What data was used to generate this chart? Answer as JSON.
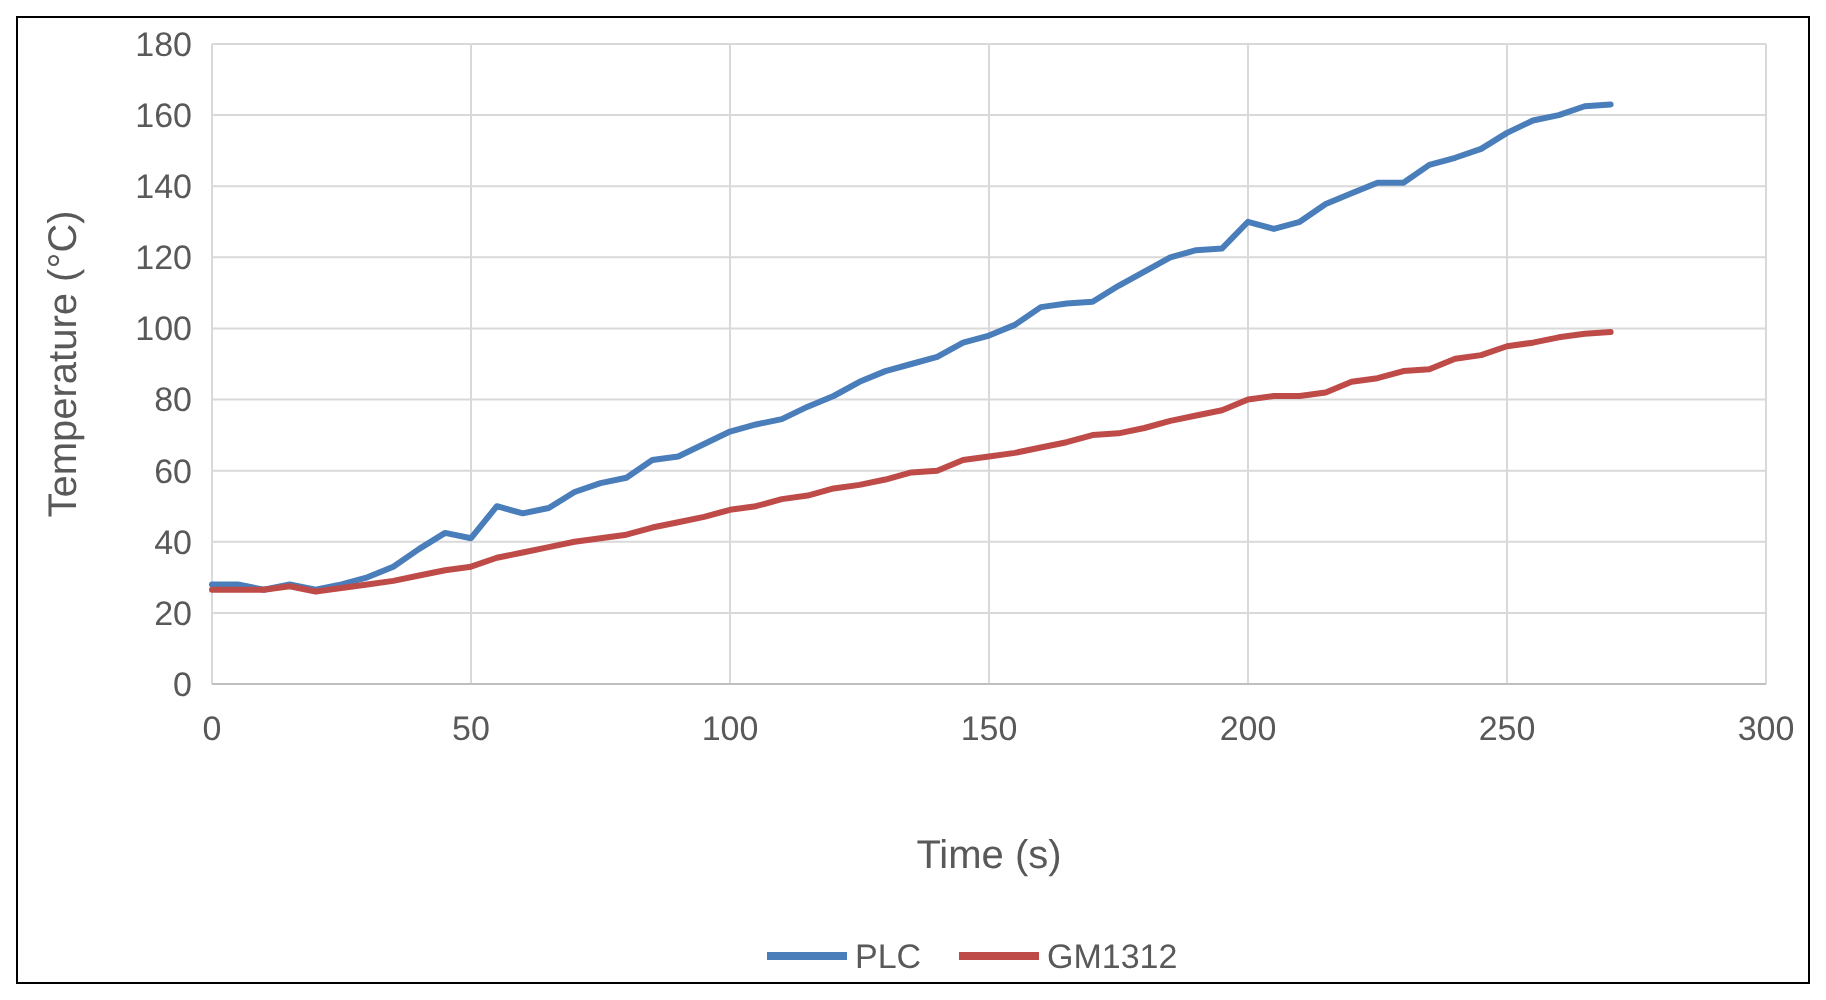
{
  "chart_data": {
    "type": "line",
    "xlabel": "Time (s)",
    "ylabel": "Temperature (°C)",
    "x": [
      0,
      5,
      10,
      15,
      20,
      25,
      30,
      35,
      40,
      45,
      50,
      55,
      60,
      65,
      70,
      75,
      80,
      85,
      90,
      95,
      100,
      105,
      110,
      115,
      120,
      125,
      130,
      135,
      140,
      145,
      150,
      155,
      160,
      165,
      170,
      175,
      180,
      185,
      190,
      195,
      200,
      205,
      210,
      215,
      220,
      225,
      230,
      235,
      240,
      245,
      250,
      255,
      260,
      265,
      270
    ],
    "series": [
      {
        "name": "PLC",
        "color": "#4a7ebb",
        "values": [
          28,
          28,
          26.5,
          28,
          26.5,
          28,
          30,
          33,
          38,
          42.5,
          41,
          50,
          48,
          49.5,
          54,
          56.5,
          58,
          63,
          64,
          67.5,
          71,
          73,
          74.5,
          78,
          81,
          85,
          88,
          90,
          92,
          96,
          98,
          101,
          106,
          107,
          107.5,
          112,
          116,
          120,
          122,
          122.5,
          130,
          128,
          130,
          135,
          138,
          141,
          141,
          146,
          148,
          150.5,
          155,
          158.5,
          160,
          162.5,
          163
        ]
      },
      {
        "name": "GM1312",
        "color": "#be4b48",
        "values": [
          26.5,
          26.5,
          26.5,
          27.5,
          26,
          27,
          28,
          29,
          30.5,
          32,
          33,
          35.5,
          37,
          38.5,
          40,
          41,
          42,
          44,
          45.5,
          47,
          49,
          50,
          52,
          53,
          55,
          56,
          57.5,
          59.5,
          60,
          63,
          64,
          65,
          66.5,
          68,
          70,
          70.5,
          72,
          74,
          75.5,
          77,
          80,
          81,
          81,
          82,
          85,
          86,
          88,
          88.5,
          91.5,
          92.5,
          95,
          96,
          97.5,
          98.5,
          99
        ]
      }
    ],
    "xlim": [
      0,
      300
    ],
    "xticks": [
      0,
      50,
      100,
      150,
      200,
      250,
      300
    ],
    "ylim": [
      0,
      180
    ],
    "yticks": [
      0,
      20,
      40,
      60,
      80,
      100,
      120,
      140,
      160,
      180
    ],
    "grid": true,
    "legend": "bottom",
    "marker": "none",
    "line_style": "solid"
  }
}
